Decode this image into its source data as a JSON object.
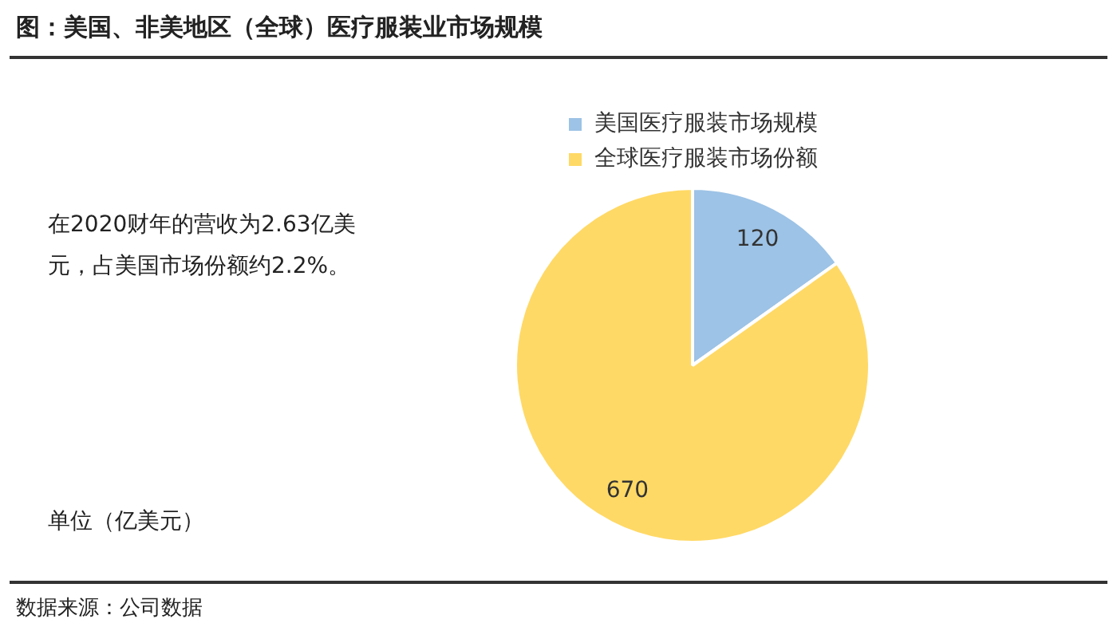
{
  "chart_data": {
    "type": "pie",
    "title": "图：美国、非美地区（全球）医疗服装业市场规模",
    "categories": [
      "美国医疗服装市场规模",
      "全球医疗服装市场份额"
    ],
    "values": [
      120,
      670
    ],
    "colors": [
      "#9dc3e6",
      "#ffd966"
    ],
    "data_labels": true,
    "legend": "top",
    "annotations": [
      "在2020财年的营收为2.63亿美元，占美国市场份额约2.2%。",
      "单位（亿美元）",
      "数据来源：公司数据"
    ]
  }
}
